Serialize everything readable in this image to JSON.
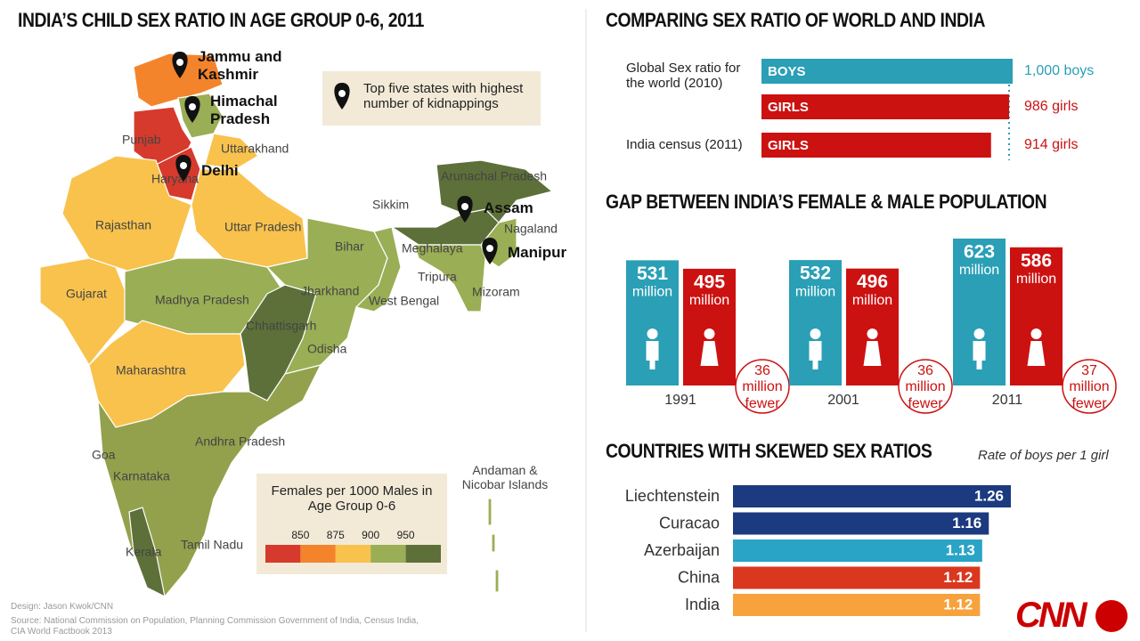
{
  "map": {
    "title": "INDIA’S CHILD SEX RATIO IN AGE GROUP 0-6, 2011",
    "pin_key": "Top five states with highest number of kidnappings",
    "pins": [
      "Jammu and Kashmir",
      "Himachal Pradesh",
      "Delhi",
      "Assam",
      "Manipur"
    ],
    "state_labels": [
      "Punjab",
      "Uttarakhand",
      "Haryana",
      "Rajasthan",
      "Uttar Pradesh",
      "Sikkim",
      "Arunachal Pradesh",
      "Nagaland",
      "Meghalaya",
      "Bihar",
      "Tripura",
      "Gujarat",
      "Madhya Pradesh",
      "Jharkhand",
      "West Bengal",
      "Mizoram",
      "Chhattisgarh",
      "Odisha",
      "Maharashtra",
      "Andhra Pradesh",
      "Goa",
      "Karnataka",
      "Kerala",
      "Tamil Nadu",
      "Andaman & Nicobar Islands"
    ],
    "legend": {
      "title": "Females per 1000 Males in Age Group 0-6",
      "ticks": [
        850,
        875,
        900,
        950
      ],
      "colors": [
        "#d63a2c",
        "#f4842b",
        "#f8c24d",
        "#9aae55",
        "#5d7039"
      ]
    }
  },
  "chart_data": [
    {
      "type": "hbar",
      "title": "COMPARING SEX RATIO OF WORLD AND INDIA",
      "groups": [
        "Global Sex ratio for the world (2010)",
        "India census (2011)"
      ],
      "categories": [
        "BOYS",
        "GIRLS",
        "GIRLS"
      ],
      "values": [
        1000,
        986,
        914
      ],
      "value_labels": [
        "1,000 boys",
        "986 girls",
        "914 girls"
      ],
      "colors": [
        "#2a9fb6",
        "#cc1111",
        "#cc1111"
      ]
    },
    {
      "type": "grouped-bar",
      "title": "GAP BETWEEN INDIA’S FEMALE & MALE POPULATION",
      "categories": [
        "1991",
        "2001",
        "2011"
      ],
      "unit": "million",
      "series": [
        {
          "color": "#2a9fb6",
          "values": [
            531,
            532,
            623
          ]
        },
        {
          "color": "#cc1111",
          "values": [
            495,
            496,
            586
          ]
        }
      ],
      "gap_values": [
        36,
        36,
        37
      ],
      "gap_word": "fewer"
    },
    {
      "type": "hbar",
      "title": "COUNTRIES WITH SKEWED SEX RATIOS",
      "subtitle": "Rate of boys per 1 girl",
      "categories": [
        "Liechtenstein",
        "Curacao",
        "Azerbaijan",
        "China",
        "India"
      ],
      "values": [
        1.26,
        1.16,
        1.13,
        1.12,
        1.12
      ],
      "colors": [
        "#1b3a7f",
        "#1b3a7f",
        "#29a3c6",
        "#d9371e",
        "#f7a23c"
      ]
    }
  ],
  "credits": {
    "design": "Design: Jason Kwok/CNN",
    "source": "Source: National Commission on Population, Planning Commission Government of India, Census India, CIA World Factbook 2013",
    "logo": "CNN"
  }
}
